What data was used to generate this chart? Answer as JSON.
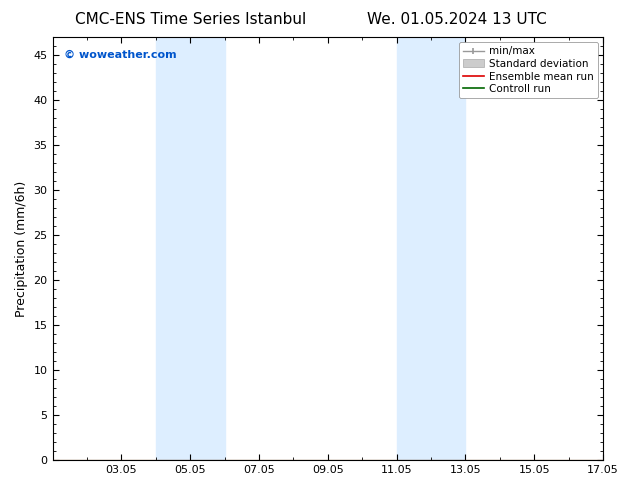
{
  "title_left": "CMC-ENS Time Series Istanbul",
  "title_right": "We. 01.05.2024 13 UTC",
  "ylabel": "Precipitation (mm/6h)",
  "watermark": "© woweather.com",
  "watermark_color": "#0055cc",
  "xlim": [
    1,
    17
  ],
  "ylim": [
    0,
    47
  ],
  "yticks": [
    0,
    5,
    10,
    15,
    20,
    25,
    30,
    35,
    40,
    45
  ],
  "xtick_labels": [
    "03.05",
    "05.05",
    "07.05",
    "09.05",
    "11.05",
    "13.05",
    "15.05",
    "17.05"
  ],
  "xtick_positions": [
    3,
    5,
    7,
    9,
    11,
    13,
    15,
    17
  ],
  "shaded_bands": [
    {
      "xstart": 4.0,
      "xend": 6.0
    },
    {
      "xstart": 11.0,
      "xend": 13.0
    }
  ],
  "shaded_color": "#ddeeff",
  "bg_color": "#ffffff",
  "title_fontsize": 11,
  "tick_fontsize": 8,
  "ylabel_fontsize": 9,
  "watermark_fontsize": 8,
  "legend_fontsize": 7.5
}
